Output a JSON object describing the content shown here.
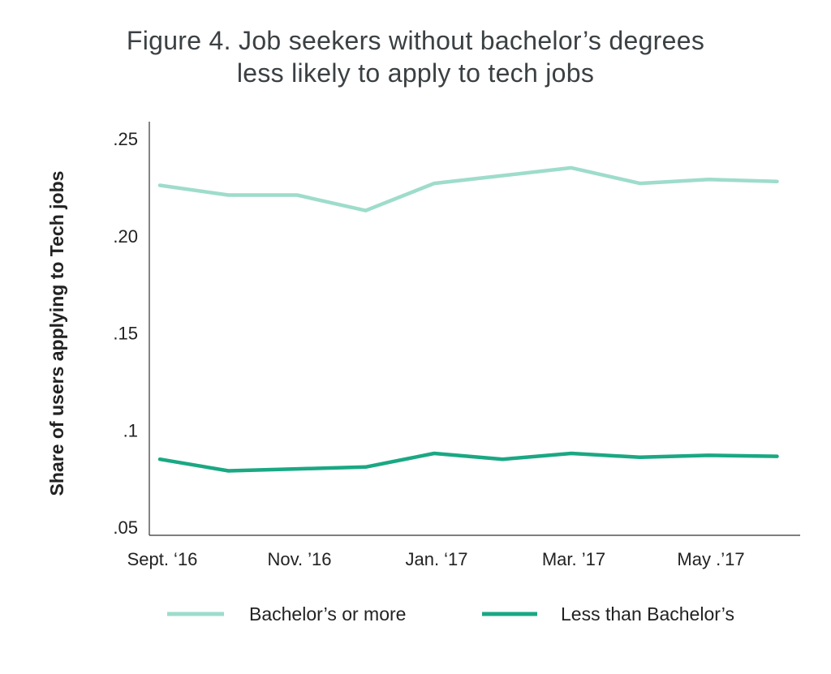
{
  "chart_data": {
    "type": "line",
    "title_lines": [
      "Figure 4. Job seekers without bachelor’s degrees",
      "less likely to apply to tech jobs"
    ],
    "ylabel": "Share of users applying to Tech jobs",
    "xlabel": "",
    "ylim": [
      0.05,
      0.255
    ],
    "y_ticks": [
      {
        "value": 0.25,
        "label": ".25"
      },
      {
        "value": 0.2,
        "label": ".20"
      },
      {
        "value": 0.15,
        "label": ".15"
      },
      {
        "value": 0.1,
        "label": ".1"
      },
      {
        "value": 0.05,
        "label": ".05"
      }
    ],
    "x": [
      "2016-09",
      "2016-10",
      "2016-11",
      "2016-12",
      "2017-01",
      "2017-02",
      "2017-03",
      "2017-04",
      "2017-05",
      "2017-06"
    ],
    "x_ticks": [
      {
        "index": 0,
        "label": "Sept. ‘16"
      },
      {
        "index": 2,
        "label": "Nov. ’16"
      },
      {
        "index": 4,
        "label": "Jan. ‘17"
      },
      {
        "index": 6,
        "label": "Mar. ’17"
      },
      {
        "index": 8,
        "label": "May .’17"
      }
    ],
    "series": [
      {
        "name": "Bachelor’s or more",
        "color": "#9edccb",
        "values": [
          0.226,
          0.221,
          0.221,
          0.213,
          0.227,
          0.231,
          0.235,
          0.227,
          0.229,
          0.228
        ]
      },
      {
        "name": "Less than Bachelor’s",
        "color": "#1aa883",
        "values": [
          0.085,
          0.079,
          0.08,
          0.081,
          0.088,
          0.085,
          0.088,
          0.086,
          0.087,
          0.0865
        ]
      }
    ],
    "grid": false,
    "legend_position": "bottom"
  }
}
